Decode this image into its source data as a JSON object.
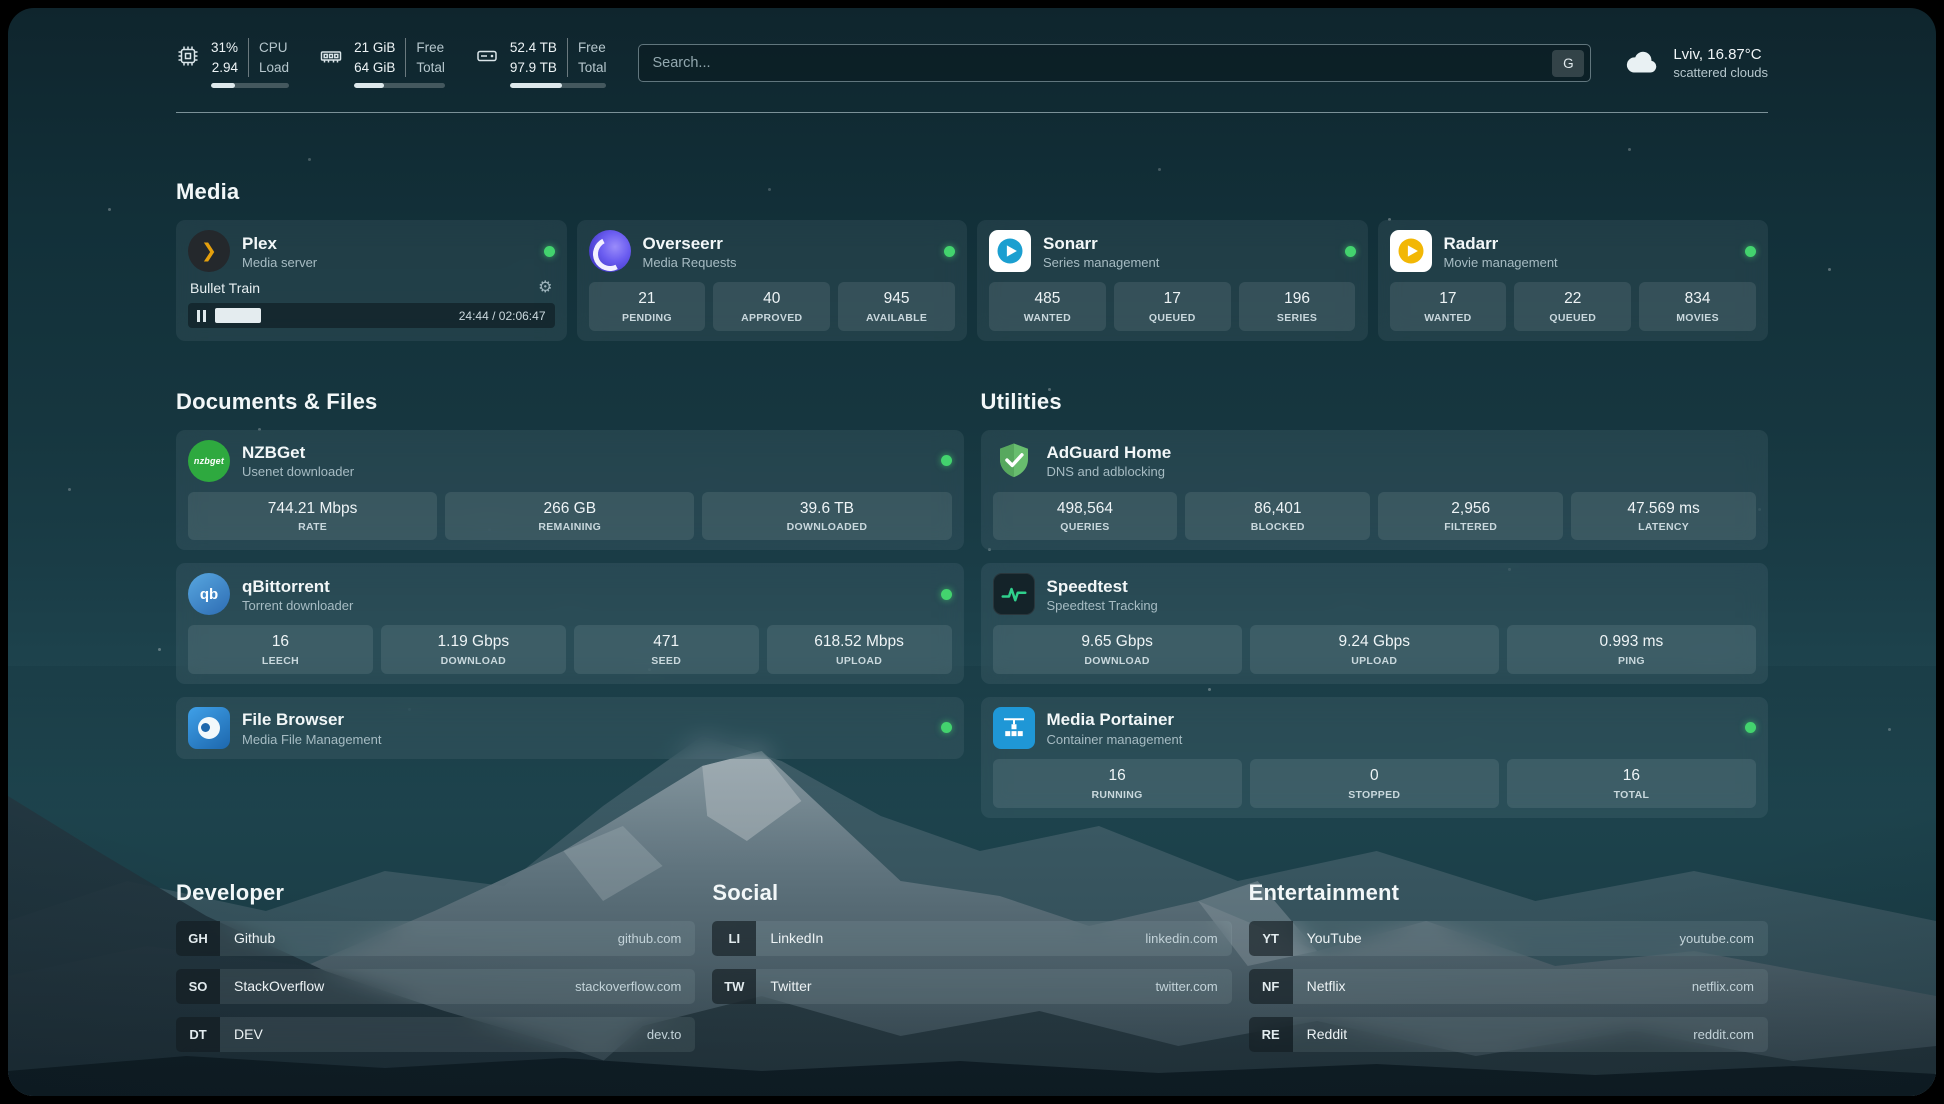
{
  "topbar": {
    "metrics": [
      {
        "name": "cpu",
        "value": "31%",
        "value2": "2.94",
        "label1": "CPU",
        "label2": "Load",
        "progress": 31
      },
      {
        "name": "memory",
        "value": "21 GiB",
        "value2": "64 GiB",
        "label1": "Free",
        "label2": "Total",
        "progress": 33
      },
      {
        "name": "storage",
        "value": "52.4 TB",
        "value2": "97.9 TB",
        "label1": "Free",
        "label2": "Total",
        "progress": 54
      }
    ],
    "search": {
      "placeholder": "Search...",
      "button_label": "G"
    },
    "weather": {
      "location": "Lviv, 16.87°C",
      "condition": "scattered clouds"
    }
  },
  "sections": {
    "media": {
      "title": "Media",
      "plex": {
        "title": "Plex",
        "subtitle": "Media server",
        "now_playing": "Bullet Train",
        "time": "24:44 / 02:06:47",
        "progress_pct": 19.5
      },
      "overseerr": {
        "title": "Overseerr",
        "subtitle": "Media Requests",
        "stats": [
          {
            "value": "21",
            "label": "PENDING"
          },
          {
            "value": "40",
            "label": "APPROVED"
          },
          {
            "value": "945",
            "label": "AVAILABLE"
          }
        ]
      },
      "sonarr": {
        "title": "Sonarr",
        "subtitle": "Series management",
        "stats": [
          {
            "value": "485",
            "label": "WANTED"
          },
          {
            "value": "17",
            "label": "QUEUED"
          },
          {
            "value": "196",
            "label": "SERIES"
          }
        ]
      },
      "radarr": {
        "title": "Radarr",
        "subtitle": "Movie management",
        "stats": [
          {
            "value": "17",
            "label": "WANTED"
          },
          {
            "value": "22",
            "label": "QUEUED"
          },
          {
            "value": "834",
            "label": "MOVIES"
          }
        ]
      }
    },
    "documents": {
      "title": "Documents & Files",
      "nzbget": {
        "title": "NZBGet",
        "subtitle": "Usenet downloader",
        "stats": [
          {
            "value": "744.21 Mbps",
            "label": "RATE"
          },
          {
            "value": "266 GB",
            "label": "REMAINING"
          },
          {
            "value": "39.6 TB",
            "label": "DOWNLOADED"
          }
        ]
      },
      "qbittorrent": {
        "title": "qBittorrent",
        "subtitle": "Torrent downloader",
        "stats": [
          {
            "value": "16",
            "label": "LEECH"
          },
          {
            "value": "1.19 Gbps",
            "label": "DOWNLOAD"
          },
          {
            "value": "471",
            "label": "SEED"
          },
          {
            "value": "618.52 Mbps",
            "label": "UPLOAD"
          }
        ]
      },
      "filebrowser": {
        "title": "File Browser",
        "subtitle": "Media File Management"
      }
    },
    "utilities": {
      "title": "Utilities",
      "adguard": {
        "title": "AdGuard Home",
        "subtitle": "DNS and adblocking",
        "stats": [
          {
            "value": "498,564",
            "label": "QUERIES"
          },
          {
            "value": "86,401",
            "label": "BLOCKED"
          },
          {
            "value": "2,956",
            "label": "FILTERED"
          },
          {
            "value": "47.569 ms",
            "label": "LATENCY"
          }
        ]
      },
      "speedtest": {
        "title": "Speedtest",
        "subtitle": "Speedtest Tracking",
        "stats": [
          {
            "value": "9.65 Gbps",
            "label": "DOWNLOAD"
          },
          {
            "value": "9.24 Gbps",
            "label": "UPLOAD"
          },
          {
            "value": "0.993 ms",
            "label": "PING"
          }
        ]
      },
      "portainer": {
        "title": "Media Portainer",
        "subtitle": "Container management",
        "stats": [
          {
            "value": "16",
            "label": "RUNNING"
          },
          {
            "value": "0",
            "label": "STOPPED"
          },
          {
            "value": "16",
            "label": "TOTAL"
          }
        ]
      }
    },
    "bookmarks": [
      {
        "title": "Developer",
        "items": [
          {
            "abbr": "GH",
            "name": "Github",
            "url": "github.com"
          },
          {
            "abbr": "SO",
            "name": "StackOverflow",
            "url": "stackoverflow.com"
          },
          {
            "abbr": "DT",
            "name": "DEV",
            "url": "dev.to"
          }
        ]
      },
      {
        "title": "Social",
        "items": [
          {
            "abbr": "LI",
            "name": "LinkedIn",
            "url": "linkedin.com"
          },
          {
            "abbr": "TW",
            "name": "Twitter",
            "url": "twitter.com"
          }
        ]
      },
      {
        "title": "Entertainment",
        "items": [
          {
            "abbr": "YT",
            "name": "YouTube",
            "url": "youtube.com"
          },
          {
            "abbr": "NF",
            "name": "Netflix",
            "url": "netflix.com"
          },
          {
            "abbr": "RE",
            "name": "Reddit",
            "url": "reddit.com"
          }
        ]
      }
    ]
  },
  "glyphs": {
    "gear": "⚙",
    "plex_chevron": "❯",
    "nzbget_label": "nzbget",
    "qbittorrent_label": "qb"
  },
  "colors": {
    "status_online": "#43d36e",
    "plex_accent": "#e5a00d",
    "adguard_green": "#68bd6e",
    "speedtest_green": "#2fd08c"
  }
}
